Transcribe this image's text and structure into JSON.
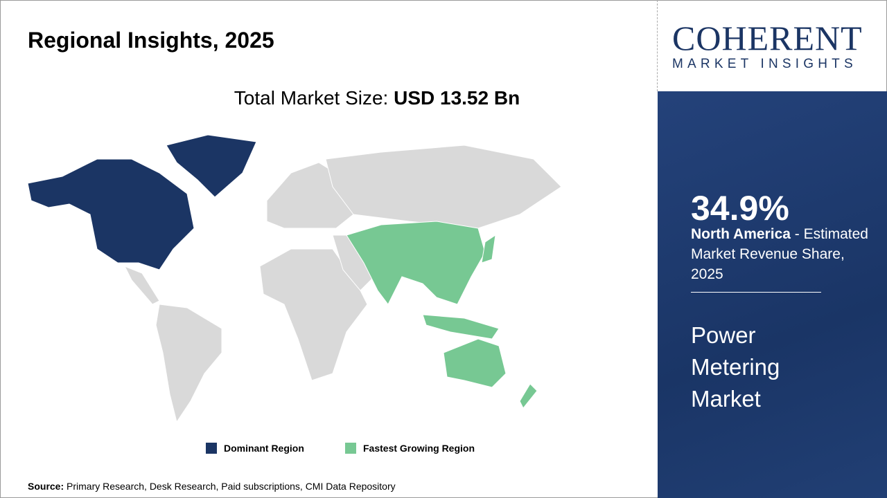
{
  "header": {
    "title": "Regional Insights, 2025"
  },
  "market_size": {
    "label": "Total Market Size:",
    "value": "USD 13.52 Bn"
  },
  "map": {
    "dominant_color": "#1b3564",
    "fastest_color": "#77c893",
    "other_color": "#d9d9d9",
    "dominant_region": "North America",
    "fastest_region": "Asia Pacific"
  },
  "legend": [
    {
      "label": "Dominant Region",
      "color": "#1b3564"
    },
    {
      "label": "Fastest Growing Region",
      "color": "#77c893"
    }
  ],
  "source": {
    "label": "Source:",
    "text": " Primary Research, Desk Research, Paid subscriptions, CMI Data Repository"
  },
  "logo": {
    "line1": "COHERENT",
    "line2": "MARKET INSIGHTS"
  },
  "panel": {
    "percent": "34.9%",
    "region": "North America",
    "desc": " - Estimated Market Revenue Share, 2025",
    "market": "Power Metering Market"
  }
}
